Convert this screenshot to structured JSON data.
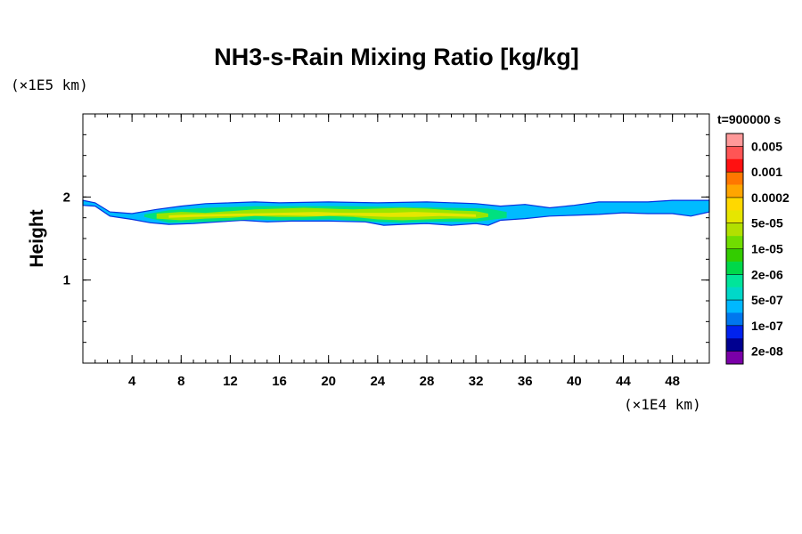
{
  "chart_data": {
    "type": "heatmap",
    "title": "NH3-s-Rain Mixing Ratio [kg/kg]",
    "ylabel": "Height",
    "xlabel": "",
    "x_unit": "(×1E4 km)",
    "y_unit": "(×1E5 km)",
    "time_label": "t=900000 s",
    "xlim": [
      0,
      51
    ],
    "ylim": [
      0,
      3
    ],
    "x_ticks": [
      4,
      8,
      12,
      16,
      20,
      24,
      28,
      32,
      36,
      40,
      44,
      48
    ],
    "y_ticks": [
      1,
      2
    ],
    "x_minor_step": 1,
    "y_minor_step": 0.25,
    "legend": {
      "levels": [
        "0.005",
        "0.001",
        "0.0002",
        "5e-05",
        "1e-05",
        "2e-06",
        "5e-07",
        "1e-07",
        "2e-08"
      ],
      "colors": [
        "#ff9999",
        "#ff5555",
        "#ff1111",
        "#ff7700",
        "#ffa500",
        "#ffd800",
        "#e6e600",
        "#b2e000",
        "#70dd00",
        "#33cc00",
        "#00d84a",
        "#00e59a",
        "#00d8c8",
        "#00b8ff",
        "#0077ee",
        "#0022ee",
        "#000090",
        "#7a00a8"
      ]
    },
    "field_layers": [
      {
        "name": "outer",
        "color": "#00bbff",
        "top": [
          [
            0,
            1.96
          ],
          [
            1,
            1.93
          ],
          [
            2.2,
            1.82
          ],
          [
            4,
            1.8
          ],
          [
            6,
            1.85
          ],
          [
            8,
            1.89
          ],
          [
            10,
            1.92
          ],
          [
            12,
            1.93
          ],
          [
            14,
            1.94
          ],
          [
            16,
            1.93
          ],
          [
            20,
            1.94
          ],
          [
            24,
            1.93
          ],
          [
            28,
            1.94
          ],
          [
            32,
            1.92
          ],
          [
            34,
            1.89
          ],
          [
            36,
            1.91
          ],
          [
            38,
            1.87
          ],
          [
            40,
            1.9
          ],
          [
            42,
            1.94
          ],
          [
            44,
            1.94
          ],
          [
            46,
            1.94
          ],
          [
            48,
            1.96
          ],
          [
            51,
            1.96
          ]
        ],
        "bottom": [
          [
            0,
            1.9
          ],
          [
            1,
            1.89
          ],
          [
            2.2,
            1.77
          ],
          [
            4,
            1.73
          ],
          [
            5.5,
            1.69
          ],
          [
            7,
            1.67
          ],
          [
            9,
            1.68
          ],
          [
            11,
            1.7
          ],
          [
            13,
            1.72
          ],
          [
            15,
            1.7
          ],
          [
            17,
            1.71
          ],
          [
            20,
            1.71
          ],
          [
            23,
            1.7
          ],
          [
            24.5,
            1.66
          ],
          [
            26,
            1.67
          ],
          [
            28,
            1.68
          ],
          [
            30,
            1.66
          ],
          [
            32,
            1.68
          ],
          [
            33,
            1.66
          ],
          [
            34,
            1.72
          ],
          [
            36,
            1.74
          ],
          [
            38,
            1.77
          ],
          [
            40,
            1.78
          ],
          [
            42,
            1.79
          ],
          [
            44,
            1.81
          ],
          [
            46,
            1.8
          ],
          [
            48,
            1.8
          ],
          [
            49.5,
            1.77
          ],
          [
            51,
            1.82
          ]
        ]
      },
      {
        "name": "mid",
        "color": "#00e080",
        "top": [
          [
            5,
            1.79
          ],
          [
            7,
            1.84
          ],
          [
            10,
            1.87
          ],
          [
            14,
            1.89
          ],
          [
            18,
            1.89
          ],
          [
            22,
            1.89
          ],
          [
            26,
            1.88
          ],
          [
            30,
            1.87
          ],
          [
            33,
            1.86
          ],
          [
            34.5,
            1.82
          ]
        ],
        "bottom": [
          [
            5,
            1.76
          ],
          [
            7,
            1.69
          ],
          [
            10,
            1.7
          ],
          [
            14,
            1.73
          ],
          [
            16,
            1.72
          ],
          [
            20,
            1.73
          ],
          [
            24,
            1.7
          ],
          [
            26,
            1.69
          ],
          [
            28,
            1.7
          ],
          [
            32,
            1.7
          ],
          [
            34.5,
            1.75
          ]
        ]
      },
      {
        "name": "inner",
        "color": "#99e600",
        "top": [
          [
            6,
            1.8
          ],
          [
            8,
            1.82
          ],
          [
            10,
            1.81
          ],
          [
            12,
            1.83
          ],
          [
            14,
            1.85
          ],
          [
            16,
            1.86
          ],
          [
            18,
            1.87
          ],
          [
            20,
            1.86
          ],
          [
            22,
            1.85
          ],
          [
            24,
            1.86
          ],
          [
            26,
            1.87
          ],
          [
            28,
            1.86
          ],
          [
            30,
            1.84
          ],
          [
            32,
            1.83
          ],
          [
            33,
            1.8
          ]
        ],
        "bottom": [
          [
            6,
            1.74
          ],
          [
            8,
            1.72
          ],
          [
            10,
            1.74
          ],
          [
            12,
            1.75
          ],
          [
            14,
            1.77
          ],
          [
            16,
            1.76
          ],
          [
            18,
            1.76
          ],
          [
            20,
            1.77
          ],
          [
            22,
            1.76
          ],
          [
            24,
            1.73
          ],
          [
            26,
            1.72
          ],
          [
            28,
            1.73
          ],
          [
            30,
            1.74
          ],
          [
            32,
            1.74
          ],
          [
            33,
            1.76
          ]
        ]
      },
      {
        "name": "core",
        "color": "#e6e600",
        "top": [
          [
            7,
            1.78
          ],
          [
            9,
            1.79
          ],
          [
            16,
            1.81
          ],
          [
            19,
            1.82
          ],
          [
            21,
            1.81
          ],
          [
            25,
            1.81
          ],
          [
            27,
            1.82
          ],
          [
            29,
            1.81
          ],
          [
            32,
            1.79
          ]
        ],
        "bottom": [
          [
            7,
            1.75
          ],
          [
            9,
            1.76
          ],
          [
            16,
            1.78
          ],
          [
            19,
            1.77
          ],
          [
            21,
            1.78
          ],
          [
            25,
            1.76
          ],
          [
            27,
            1.76
          ],
          [
            29,
            1.77
          ],
          [
            32,
            1.76
          ]
        ]
      }
    ]
  }
}
